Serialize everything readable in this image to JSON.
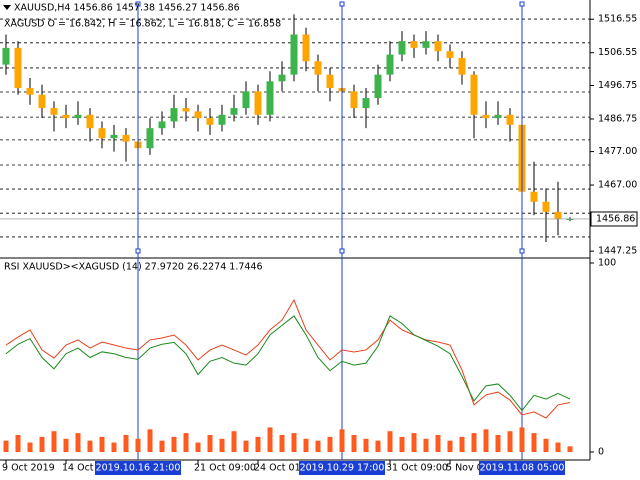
{
  "chart_data": [
    {
      "type": "candlestick",
      "title": "XAUUSD,H4  1456.86 1457.38 1456.27 1456.86",
      "subtitle": "XAGUSD O = 16.842, H = 16.862, L = 16.818, C = 16.858",
      "open": [
        1503,
        1508,
        1496,
        1494,
        1490,
        1488,
        1487,
        1488,
        1484,
        1481,
        1482,
        1480,
        1478,
        1484,
        1486,
        1490,
        1489,
        1487,
        1485,
        1488,
        1490,
        1495,
        1488,
        1498,
        1500,
        1512,
        1504,
        1500,
        1496,
        1495,
        1490,
        1493,
        1500,
        1506,
        1510,
        1508,
        1510,
        1507,
        1505,
        1500,
        1488,
        1487,
        1488,
        1485,
        1465,
        1462,
        1459,
        1456.86
      ],
      "high": [
        1512,
        1510,
        1499,
        1497,
        1492,
        1491,
        1492,
        1490,
        1486,
        1485,
        1484,
        1483,
        1487,
        1489,
        1494,
        1493,
        1491,
        1490,
        1491,
        1494,
        1498,
        1497,
        1501,
        1504,
        1518,
        1514,
        1506,
        1502,
        1499,
        1497,
        1496,
        1503,
        1510,
        1513,
        1512,
        1513,
        1512,
        1509,
        1507,
        1501,
        1492,
        1492,
        1490,
        1486,
        1474,
        1466,
        1468,
        1457.38
      ],
      "low": [
        1500,
        1494,
        1491,
        1487,
        1483,
        1484,
        1485,
        1480,
        1478,
        1477,
        1474,
        1473,
        1476,
        1482,
        1484,
        1486,
        1483,
        1482,
        1483,
        1486,
        1488,
        1485,
        1486,
        1495,
        1498,
        1501,
        1495,
        1492,
        1488,
        1487,
        1484,
        1491,
        1498,
        1504,
        1505,
        1506,
        1504,
        1502,
        1497,
        1481,
        1484,
        1485,
        1480,
        1461,
        1458,
        1450,
        1452,
        1456.27
      ],
      "close": [
        1508,
        1496,
        1494,
        1490,
        1488,
        1487,
        1488,
        1484,
        1481,
        1482,
        1480,
        1478,
        1484,
        1486,
        1490,
        1489,
        1487,
        1485,
        1488,
        1490,
        1495,
        1488,
        1498,
        1500,
        1512,
        1504,
        1500,
        1496,
        1495,
        1490,
        1493,
        1500,
        1506,
        1510,
        1508,
        1510,
        1507,
        1505,
        1500,
        1488,
        1487,
        1488,
        1485,
        1465,
        1462,
        1459,
        1457,
        1456.86
      ],
      "up_color": "#3cb44b",
      "down_color": "#ffa500",
      "ylim": [
        1445.5,
        1522.3
      ],
      "yticks": [
        1516.55,
        1506.55,
        1496.75,
        1486.75,
        {
          "value": 1477.0,
          "label": "1477.00"
        },
        {
          "value": 1467.0,
          "label": "1467.00"
        },
        1447.25
      ],
      "last_price": 1456.86,
      "levels": [
        1516.6,
        1509.5,
        1502.0,
        1494.8,
        1487.3,
        1480.5,
        1473.0,
        1465.8,
        1458.6,
        1451.5
      ],
      "xticks": [
        {
          "value": 0,
          "label": "9 Oct 2019"
        },
        {
          "value": 5,
          "label": "14 Oct"
        },
        {
          "value": 16,
          "label": "21 Oct 09:00"
        },
        {
          "value": 21,
          "label": "24 Oct 01:00"
        },
        {
          "value": 32,
          "label": "31 Oct 09:00"
        },
        {
          "value": 37,
          "label": "5 Nov 01:00"
        }
      ],
      "markers": [
        {
          "value": 11,
          "label": "2019.10.16 21:00"
        },
        {
          "value": 28,
          "label": "2019.10.29 17:00"
        },
        {
          "value": 43,
          "label": "2019.11.08 05:00"
        }
      ],
      "marker_color": "#1a3fd6"
    },
    {
      "type": "line",
      "title": "RSI XAUUSD><XAGUSD (14) 27.9720 26.2274 1.7446",
      "ylim": [
        0,
        100
      ],
      "yticks": [
        100,
        0
      ],
      "series": [
        {
          "color": "#e8401c",
          "values": [
            56.6,
            60.8,
            64.6,
            54,
            49.7,
            56.6,
            59.3,
            55,
            58.2,
            56.6,
            55,
            54,
            59.3,
            60.3,
            61.9,
            56.6,
            48.7,
            54,
            56.6,
            54,
            51.3,
            56.6,
            64.6,
            69.8,
            80.4,
            64.6,
            56.6,
            48.7,
            54,
            52.9,
            54,
            59.3,
            69.8,
            64.6,
            61.9,
            59.3,
            58.2,
            56.6,
            43.4,
            24.9,
            30.2,
            31.7,
            27.5,
            19.6,
            21.2,
            18,
            24.9,
            26.2
          ]
        },
        {
          "color": "#1a8a1a",
          "values": [
            52,
            57,
            60,
            50,
            44,
            52,
            55,
            50,
            53,
            52,
            50,
            49,
            55,
            57,
            58,
            52,
            41,
            48,
            50,
            47,
            46,
            52,
            62,
            67,
            72,
            62,
            50,
            43,
            48,
            46,
            47,
            56,
            72,
            68,
            62,
            59,
            56,
            52,
            40,
            27,
            35,
            36,
            30,
            22,
            30,
            28,
            31,
            28.0
          ]
        }
      ],
      "bars": {
        "color": "#ff5a1f",
        "values": [
          6,
          9,
          5,
          8,
          11,
          7,
          10,
          6,
          8,
          5,
          9,
          7,
          12,
          6,
          8,
          10,
          5,
          9,
          7,
          11,
          6,
          8,
          13,
          9,
          10,
          7,
          6,
          8,
          12,
          9,
          7,
          6,
          11,
          8,
          10,
          7,
          9,
          6,
          8,
          10,
          12,
          9,
          11,
          13,
          10,
          7,
          5,
          3
        ]
      }
    }
  ]
}
